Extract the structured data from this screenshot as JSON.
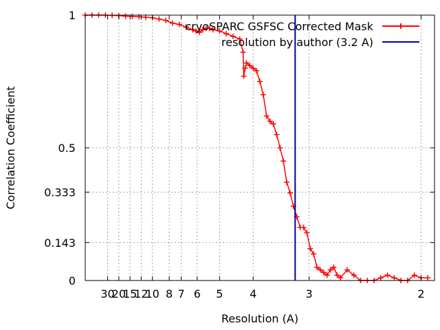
{
  "chart_data": {
    "type": "line",
    "xlabel": "Resolution (A)",
    "ylabel": "Correlation Coefficient",
    "x_unit": "1/A",
    "xlim": [
      0,
      0.52
    ],
    "ylim": [
      0,
      1
    ],
    "grid": true,
    "legend_position": "top-right",
    "x_ticks": [
      {
        "label": "30",
        "value": 0.0333
      },
      {
        "label": "20",
        "value": 0.05
      },
      {
        "label": "15",
        "value": 0.0667
      },
      {
        "label": "12",
        "value": 0.0833
      },
      {
        "label": "10",
        "value": 0.1
      },
      {
        "label": "8",
        "value": 0.125
      },
      {
        "label": "7",
        "value": 0.1429
      },
      {
        "label": "6",
        "value": 0.1667
      },
      {
        "label": "5",
        "value": 0.2
      },
      {
        "label": "4",
        "value": 0.25
      },
      {
        "label": "3",
        "value": 0.3333
      },
      {
        "label": "2",
        "value": 0.5
      }
    ],
    "y_ticks": [
      {
        "label": "0",
        "value": 0
      },
      {
        "label": "0.143",
        "value": 0.143
      },
      {
        "label": "0.333",
        "value": 0.333
      },
      {
        "label": "0.5",
        "value": 0.5
      },
      {
        "label": "1",
        "value": 1
      }
    ],
    "series": [
      {
        "name": "cryoSPARC GSFSC Corrected Mask",
        "color": "#ff0000",
        "marker": "plus",
        "x": [
          0.0,
          0.01,
          0.02,
          0.03,
          0.04,
          0.05,
          0.06,
          0.07,
          0.08,
          0.09,
          0.1,
          0.11,
          0.12,
          0.13,
          0.14,
          0.15,
          0.16,
          0.165,
          0.17,
          0.175,
          0.18,
          0.185,
          0.19,
          0.2,
          0.21,
          0.22,
          0.23,
          0.235,
          0.236,
          0.238,
          0.24,
          0.245,
          0.25,
          0.255,
          0.26,
          0.265,
          0.27,
          0.275,
          0.28,
          0.285,
          0.29,
          0.295,
          0.3,
          0.305,
          0.31,
          0.315,
          0.32,
          0.325,
          0.33,
          0.335,
          0.34,
          0.345,
          0.35,
          0.355,
          0.36,
          0.365,
          0.37,
          0.375,
          0.38,
          0.39,
          0.4,
          0.41,
          0.42,
          0.43,
          0.44,
          0.45,
          0.46,
          0.47,
          0.48,
          0.49,
          0.5,
          0.51
        ],
        "y": [
          1.0,
          1.0,
          1.0,
          1.0,
          0.999,
          0.998,
          0.996,
          0.995,
          0.994,
          0.992,
          0.99,
          0.985,
          0.98,
          0.97,
          0.965,
          0.955,
          0.945,
          0.94,
          0.935,
          0.945,
          0.95,
          0.95,
          0.945,
          0.94,
          0.93,
          0.92,
          0.91,
          0.86,
          0.77,
          0.8,
          0.82,
          0.81,
          0.8,
          0.79,
          0.75,
          0.7,
          0.62,
          0.6,
          0.59,
          0.55,
          0.5,
          0.45,
          0.37,
          0.33,
          0.28,
          0.24,
          0.2,
          0.2,
          0.18,
          0.12,
          0.1,
          0.05,
          0.04,
          0.03,
          0.02,
          0.04,
          0.05,
          0.02,
          0.01,
          0.04,
          0.02,
          0.0,
          0.0,
          0.0,
          0.01,
          0.02,
          0.01,
          0.0,
          0.0,
          0.02,
          0.01,
          0.01
        ]
      },
      {
        "name": "resolution by author (3.2 A)",
        "color": "#0000a0",
        "type": "vline",
        "x_value": 0.3125
      }
    ]
  }
}
